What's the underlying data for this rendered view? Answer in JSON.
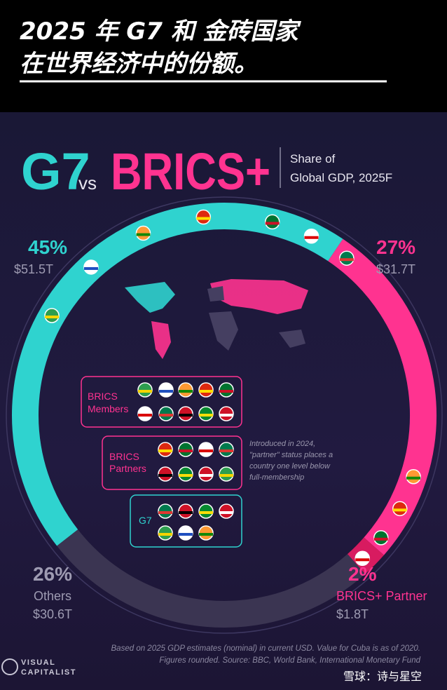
{
  "header": {
    "lines": [
      "2025 年 G7 和 金砖国家",
      "在世界经济中的份额。"
    ]
  },
  "chart_data": {
    "type": "pie",
    "title_joiner": "vs",
    "subtitle": [
      "Share of",
      "Global GDP, 2025F"
    ],
    "categories": [
      "G7",
      "BRICS+",
      "BRICS+ Partner",
      "Others"
    ],
    "values": [
      45,
      27,
      2,
      26
    ],
    "value_labels": [
      "45%",
      "27%",
      "2%",
      "26%"
    ],
    "amounts": [
      "$51.5T",
      "$31.7T",
      "$1.8T",
      "$30.6T"
    ],
    "colors": [
      "#2fd3cf",
      "#ff3390",
      "#d81b60",
      "#3b3552"
    ]
  },
  "boxes": [
    {
      "label": [
        "BRICS",
        "Members"
      ]
    },
    {
      "label": [
        "BRICS",
        "Partners"
      ]
    },
    {
      "label": [
        "G7"
      ]
    }
  ],
  "note": [
    "Introduced in 2024,",
    "\"partner\" status places a",
    "country one level below",
    "full-membership"
  ],
  "source": [
    "Based on 2025 GDP estimates (nominal) in current USD. Value for Cuba is as of 2020.",
    "Figures rounded. Source: BBC, World Bank, International Monetary Fund"
  ],
  "logo": [
    "VISUAL",
    "CAPITALIST"
  ],
  "watermark": "雪球：诗与星空"
}
